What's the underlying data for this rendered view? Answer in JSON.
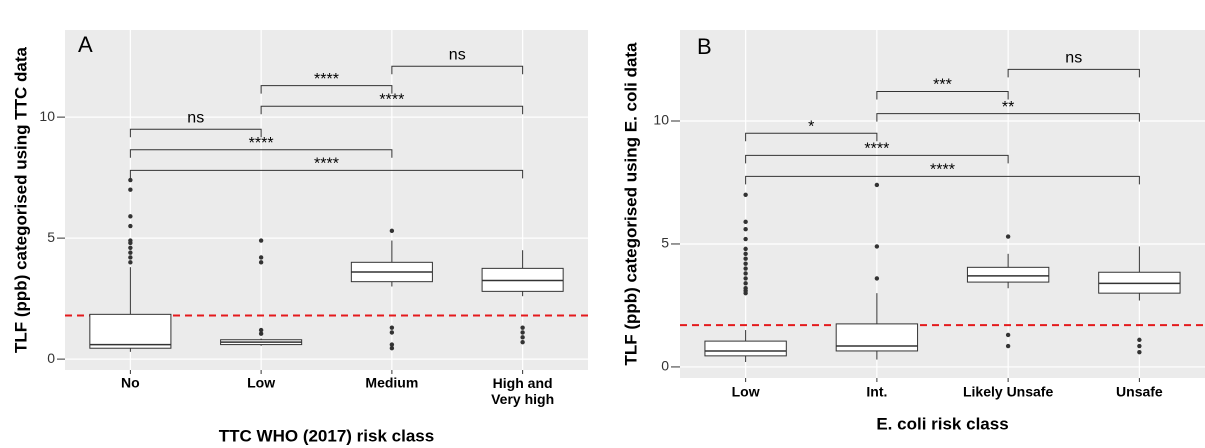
{
  "chart_data": [
    {
      "type": "box",
      "panel_label": "A",
      "y_label": "TLF (ppb) categorised using TTC data",
      "x_label": "TTC WHO (2017) risk class",
      "categories": [
        "No",
        "Low",
        "Medium",
        "High and\nVery high"
      ],
      "boxes": [
        {
          "whisker_low": 0.3,
          "q1": 0.45,
          "median": 0.6,
          "q3": 1.85,
          "whisker_high": 3.8,
          "outliers": [
            4.0,
            4.2,
            4.4,
            4.6,
            4.8,
            4.9,
            5.5,
            5.9,
            7.0,
            7.4
          ]
        },
        {
          "whisker_low": 0.55,
          "q1": 0.6,
          "median": 0.7,
          "q3": 0.8,
          "whisker_high": 0.85,
          "outliers": [
            1.05,
            1.2,
            4.0,
            4.2,
            4.9
          ]
        },
        {
          "whisker_low": 3.0,
          "q1": 3.2,
          "median": 3.6,
          "q3": 4.0,
          "whisker_high": 4.9,
          "outliers": [
            0.45,
            0.6,
            1.1,
            1.3,
            5.3
          ]
        },
        {
          "whisker_low": 2.6,
          "q1": 2.8,
          "median": 3.25,
          "q3": 3.75,
          "whisker_high": 4.5,
          "outliers": [
            0.7,
            0.9,
            1.1,
            1.3
          ]
        }
      ],
      "comparisons": [
        {
          "groups": [
            "No",
            "Low"
          ],
          "y": 9.5,
          "label": "ns"
        },
        {
          "groups": [
            "No",
            "Medium"
          ],
          "y": 8.65,
          "label": "****"
        },
        {
          "groups": [
            "No",
            "High and\nVery high"
          ],
          "y": 7.8,
          "label": "****"
        },
        {
          "groups": [
            "Low",
            "Medium"
          ],
          "y": 11.3,
          "label": "****"
        },
        {
          "groups": [
            "Low",
            "High and\nVery high"
          ],
          "y": 10.45,
          "label": "****"
        },
        {
          "groups": [
            "Medium",
            "High and\nVery high"
          ],
          "y": 12.1,
          "label": "ns"
        }
      ],
      "reference_line": {
        "y": 1.8,
        "color": "#e41a1c",
        "style": "dashed"
      },
      "ylim": [
        -0.45,
        13.6
      ],
      "yticks": [
        0,
        5,
        10
      ],
      "grid": true
    },
    {
      "type": "box",
      "panel_label": "B",
      "y_label": "TLF (ppb) categorised using E. coli data",
      "x_label": "E. coli risk class",
      "categories": [
        "Low",
        "Int.",
        "Likely Unsafe",
        "Unsafe"
      ],
      "boxes": [
        {
          "whisker_low": 0.2,
          "q1": 0.45,
          "median": 0.65,
          "q3": 1.05,
          "whisker_high": 1.5,
          "outliers": [
            3.0,
            3.1,
            3.2,
            3.4,
            3.6,
            3.8,
            4.0,
            4.2,
            4.4,
            4.6,
            4.8,
            5.2,
            5.6,
            5.9,
            7.0
          ]
        },
        {
          "whisker_low": 0.3,
          "q1": 0.65,
          "median": 0.85,
          "q3": 1.75,
          "whisker_high": 3.0,
          "outliers": [
            3.6,
            4.9,
            7.4
          ]
        },
        {
          "whisker_low": 3.2,
          "q1": 3.45,
          "median": 3.7,
          "q3": 4.05,
          "whisker_high": 4.6,
          "outliers": [
            0.85,
            1.3,
            5.3
          ]
        },
        {
          "whisker_low": 2.7,
          "q1": 3.0,
          "median": 3.4,
          "q3": 3.85,
          "whisker_high": 4.9,
          "outliers": [
            0.6,
            0.85,
            1.1
          ]
        }
      ],
      "comparisons": [
        {
          "groups": [
            "Low",
            "Int."
          ],
          "y": 9.5,
          "label": "*"
        },
        {
          "groups": [
            "Low",
            "Likely Unsafe"
          ],
          "y": 8.6,
          "label": "****"
        },
        {
          "groups": [
            "Low",
            "Unsafe"
          ],
          "y": 7.75,
          "label": "****"
        },
        {
          "groups": [
            "Int.",
            "Likely Unsafe"
          ],
          "y": 11.2,
          "label": "***"
        },
        {
          "groups": [
            "Int.",
            "Unsafe"
          ],
          "y": 10.3,
          "label": "**"
        },
        {
          "groups": [
            "Likely Unsafe",
            "Unsafe"
          ],
          "y": 12.1,
          "label": "ns"
        }
      ],
      "reference_line": {
        "y": 1.7,
        "color": "#e41a1c",
        "style": "dashed"
      },
      "ylim": [
        -0.45,
        13.7
      ],
      "yticks": [
        0,
        5,
        10
      ],
      "grid": true
    }
  ]
}
